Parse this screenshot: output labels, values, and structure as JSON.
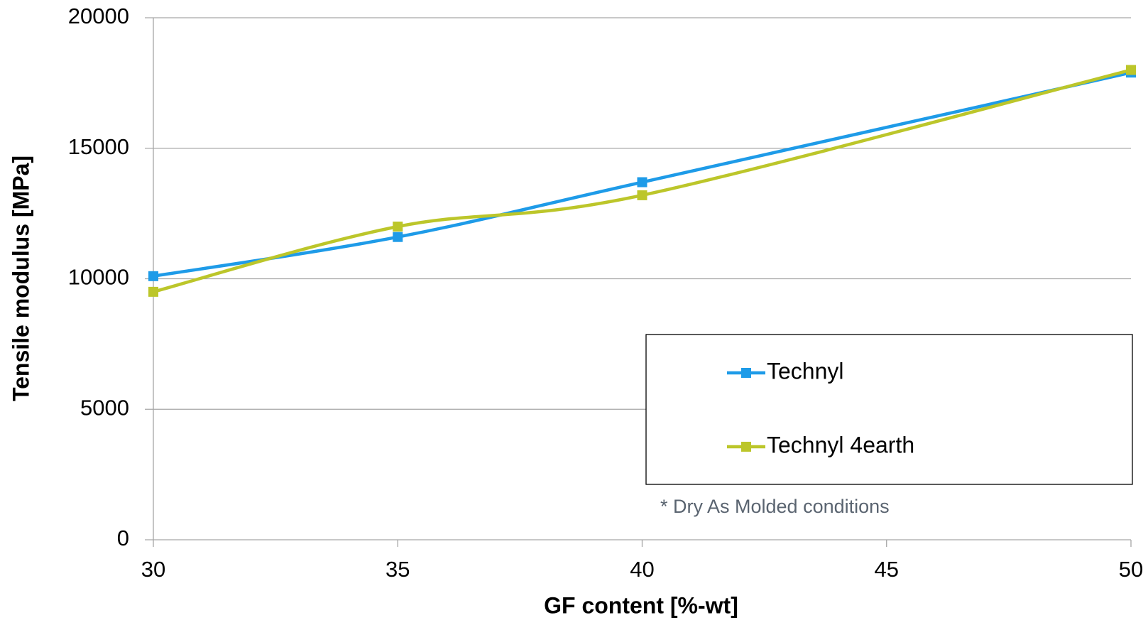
{
  "chart_data": {
    "type": "line",
    "x_label": "GF content [%-wt]",
    "y_label": "Tensile modulus [MPa]",
    "annotation": "* Dry As Molded conditions",
    "x": [
      30,
      35,
      40,
      50
    ],
    "series": [
      {
        "name": "Technyl",
        "color": "#1e9be8",
        "values": [
          10100,
          11600,
          13700,
          17900
        ]
      },
      {
        "name": "Technyl 4earth",
        "color": "#bcc62a",
        "values": [
          9500,
          12000,
          13200,
          18000
        ]
      }
    ],
    "xlim": [
      30,
      50
    ],
    "xticks": [
      30,
      35,
      40,
      45,
      50
    ],
    "ylim": [
      0,
      20000
    ],
    "yticks": [
      0,
      5000,
      10000,
      15000,
      20000
    ],
    "grid": true,
    "smooth": true
  }
}
